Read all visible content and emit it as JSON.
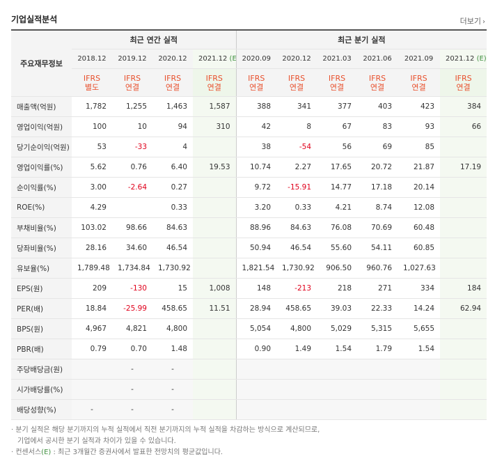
{
  "header": {
    "title": "기업실적분석",
    "more_label": "더보기",
    "more_arrow": "›"
  },
  "table": {
    "row_header_label": "주요재무정보",
    "group_annual": "최근 연간 실적",
    "group_quarter": "최근 분기 실적",
    "estimate_mark": "(E)",
    "periods": [
      {
        "label": "2018.12",
        "est": false,
        "ifrs1": "IFRS",
        "ifrs2": "별도"
      },
      {
        "label": "2019.12",
        "est": false,
        "ifrs1": "IFRS",
        "ifrs2": "연결"
      },
      {
        "label": "2020.12",
        "est": false,
        "ifrs1": "IFRS",
        "ifrs2": "연결"
      },
      {
        "label": "2021.12",
        "est": true,
        "ifrs1": "IFRS",
        "ifrs2": "연결"
      },
      {
        "label": "2020.09",
        "est": false,
        "ifrs1": "IFRS",
        "ifrs2": "연결"
      },
      {
        "label": "2020.12",
        "est": false,
        "ifrs1": "IFRS",
        "ifrs2": "연결"
      },
      {
        "label": "2021.03",
        "est": false,
        "ifrs1": "IFRS",
        "ifrs2": "연결"
      },
      {
        "label": "2021.06",
        "est": false,
        "ifrs1": "IFRS",
        "ifrs2": "연결"
      },
      {
        "label": "2021.09",
        "est": false,
        "ifrs1": "IFRS",
        "ifrs2": "연결"
      },
      {
        "label": "2021.12",
        "est": true,
        "ifrs1": "IFRS",
        "ifrs2": "연결"
      }
    ],
    "rows": [
      {
        "label": "매출액(억원)",
        "sep": false,
        "empty": false,
        "values": [
          "1,782",
          "1,255",
          "1,463",
          "1,587",
          "388",
          "341",
          "377",
          "403",
          "423",
          "384"
        ]
      },
      {
        "label": "영업이익(억원)",
        "sep": false,
        "empty": false,
        "values": [
          "100",
          "10",
          "94",
          "310",
          "42",
          "8",
          "67",
          "83",
          "93",
          "66"
        ]
      },
      {
        "label": "당기순이익(억원)",
        "sep": false,
        "empty": false,
        "values": [
          "53",
          "-33",
          "4",
          "",
          "38",
          "-54",
          "56",
          "69",
          "85",
          ""
        ]
      },
      {
        "label": "영업이익률(%)",
        "sep": true,
        "empty": false,
        "values": [
          "5.62",
          "0.76",
          "6.40",
          "19.53",
          "10.74",
          "2.27",
          "17.65",
          "20.72",
          "21.87",
          "17.19"
        ]
      },
      {
        "label": "순이익률(%)",
        "sep": false,
        "empty": false,
        "values": [
          "3.00",
          "-2.64",
          "0.27",
          "",
          "9.72",
          "-15.91",
          "14.77",
          "17.18",
          "20.14",
          ""
        ]
      },
      {
        "label": "ROE(%)",
        "sep": false,
        "empty": false,
        "values": [
          "4.29",
          "",
          "0.33",
          "",
          "3.20",
          "0.33",
          "4.21",
          "8.74",
          "12.08",
          ""
        ]
      },
      {
        "label": "부채비율(%)",
        "sep": true,
        "empty": false,
        "values": [
          "103.02",
          "98.66",
          "84.63",
          "",
          "88.96",
          "84.63",
          "76.08",
          "70.69",
          "60.48",
          ""
        ]
      },
      {
        "label": "당좌비율(%)",
        "sep": false,
        "empty": false,
        "values": [
          "28.16",
          "34.60",
          "46.54",
          "",
          "50.94",
          "46.54",
          "55.60",
          "54.11",
          "60.85",
          ""
        ]
      },
      {
        "label": "유보율(%)",
        "sep": false,
        "empty": false,
        "values": [
          "1,789.48",
          "1,734.84",
          "1,730.92",
          "",
          "1,821.54",
          "1,730.92",
          "906.50",
          "960.76",
          "1,027.63",
          ""
        ]
      },
      {
        "label": "EPS(원)",
        "sep": true,
        "empty": false,
        "values": [
          "209",
          "-130",
          "15",
          "1,008",
          "148",
          "-213",
          "218",
          "271",
          "334",
          "184"
        ]
      },
      {
        "label": "PER(배)",
        "sep": false,
        "empty": false,
        "values": [
          "18.84",
          "-25.99",
          "458.65",
          "11.51",
          "28.94",
          "458.65",
          "39.03",
          "22.33",
          "14.24",
          "62.94"
        ]
      },
      {
        "label": "BPS(원)",
        "sep": false,
        "empty": false,
        "values": [
          "4,967",
          "4,821",
          "4,800",
          "",
          "5,054",
          "4,800",
          "5,029",
          "5,315",
          "5,655",
          ""
        ]
      },
      {
        "label": "PBR(배)",
        "sep": false,
        "empty": false,
        "values": [
          "0.79",
          "0.70",
          "1.48",
          "",
          "0.90",
          "1.49",
          "1.54",
          "1.79",
          "1.54",
          ""
        ]
      },
      {
        "label": "주당배당금(원)",
        "sep": true,
        "empty": true,
        "values": [
          "",
          "-",
          "-",
          "",
          "",
          "",
          "",
          "",
          "",
          ""
        ]
      },
      {
        "label": "시가배당률(%)",
        "sep": false,
        "empty": true,
        "values": [
          "",
          "-",
          "-",
          "",
          "",
          "",
          "",
          "",
          "",
          ""
        ]
      },
      {
        "label": "배당성향(%)",
        "sep": false,
        "empty": true,
        "values": [
          "-",
          "-",
          "-",
          "",
          "",
          "",
          "",
          "",
          "",
          ""
        ]
      }
    ]
  },
  "notes": {
    "line1": "· 분기 실적은 해당 분기까지의 누적 실적에서 직전 분기까지의 누적 실적을 차감하는 방식으로 계산되므로,",
    "line2": "기업에서 공시한 분기 실적과 차이가 있을 수 있습니다.",
    "line3_prefix": "· 컨센서스",
    "line3_mark": "(E)",
    "line3_suffix": ": 최근 3개월간 증권사에서 발표한 전망치의 평균값입니다."
  }
}
